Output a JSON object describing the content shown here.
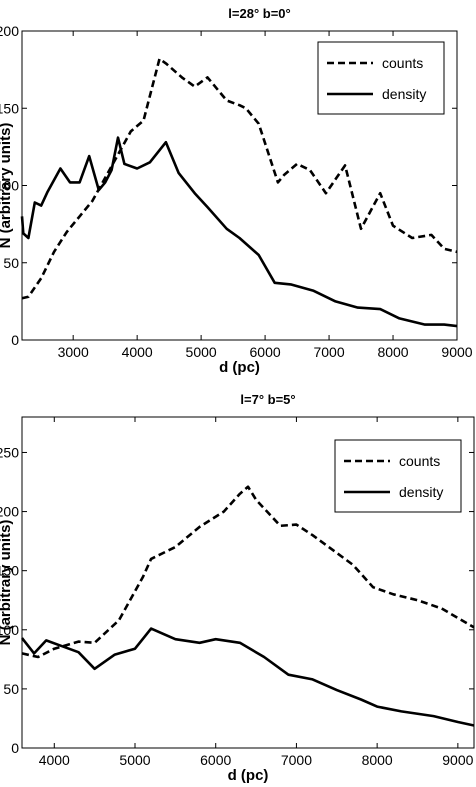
{
  "chart_data": [
    {
      "type": "line",
      "title": "l=28°   b=0°",
      "xlabel": "d (pc)",
      "ylabel": "N (arbitrary units)",
      "xlim": [
        2200,
        9000
      ],
      "ylim": [
        0,
        200
      ],
      "xticks": [
        3000,
        4000,
        5000,
        6000,
        7000,
        8000,
        9000
      ],
      "yticks": [
        0,
        50,
        100,
        150,
        200
      ],
      "grid": false,
      "legend_position": "top-right",
      "series": [
        {
          "name": "counts",
          "style": "dashed",
          "x": [
            2200,
            2300,
            2500,
            2700,
            2900,
            3100,
            3300,
            3500,
            3700,
            3900,
            4100,
            4350,
            4450,
            4700,
            4900,
            5100,
            5200,
            5400,
            5600,
            5700,
            5900,
            6200,
            6300,
            6500,
            6700,
            6950,
            7250,
            7500,
            7800,
            8000,
            8300,
            8600,
            8800,
            9000
          ],
          "y": [
            27,
            28,
            40,
            57,
            70,
            80,
            90,
            105,
            120,
            135,
            142,
            182,
            179,
            170,
            164,
            170,
            165,
            155,
            152,
            150,
            140,
            102,
            107,
            114,
            110,
            95,
            113,
            72,
            95,
            74,
            66,
            68,
            59,
            57
          ]
        },
        {
          "name": "density",
          "style": "solid",
          "x": [
            2200,
            2220,
            2300,
            2400,
            2500,
            2600,
            2800,
            2950,
            3100,
            3250,
            3400,
            3500,
            3600,
            3700,
            3800,
            4000,
            4200,
            4450,
            4650,
            4900,
            5100,
            5400,
            5600,
            5900,
            6150,
            6400,
            6750,
            7100,
            7450,
            7800,
            8100,
            8500,
            8800,
            9000
          ],
          "y": [
            80,
            69,
            66,
            89,
            87,
            96,
            111,
            102,
            102,
            119,
            97,
            102,
            110,
            131,
            114,
            111,
            115,
            128,
            108,
            95,
            86,
            72,
            66,
            55,
            37,
            36,
            32,
            25,
            21,
            20,
            14,
            10,
            10,
            9
          ]
        }
      ]
    },
    {
      "type": "line",
      "title": "l=7°   b=5°",
      "xlabel": "d (pc)",
      "ylabel": "N (arbitrary units)",
      "xlim": [
        3600,
        9200
      ],
      "ylim": [
        0,
        280
      ],
      "xticks": [
        4000,
        5000,
        6000,
        7000,
        8000,
        9000
      ],
      "yticks": [
        0,
        50,
        100,
        150,
        200,
        250
      ],
      "grid": false,
      "legend_position": "top-right",
      "series": [
        {
          "name": "counts",
          "style": "dashed",
          "x": [
            3600,
            3800,
            4000,
            4300,
            4500,
            4800,
            5100,
            5200,
            5500,
            5800,
            6100,
            6300,
            6400,
            6500,
            6800,
            7000,
            7200,
            7400,
            7700,
            7950,
            8200,
            8500,
            8800,
            9000,
            9200
          ],
          "y": [
            80,
            77,
            84,
            90,
            89,
            108,
            145,
            160,
            170,
            187,
            200,
            215,
            221,
            210,
            188,
            189,
            180,
            170,
            155,
            136,
            130,
            125,
            118,
            110,
            102
          ]
        },
        {
          "name": "density",
          "style": "solid",
          "x": [
            3600,
            3750,
            3900,
            4100,
            4300,
            4500,
            4750,
            5000,
            5200,
            5500,
            5800,
            6000,
            6300,
            6600,
            6900,
            7200,
            7500,
            7800,
            8000,
            8300,
            8700,
            9000,
            9200
          ],
          "y": [
            93,
            80,
            91,
            86,
            81,
            67,
            79,
            84,
            101,
            92,
            89,
            92,
            89,
            77,
            62,
            58,
            49,
            41,
            35,
            31,
            27,
            22,
            19
          ]
        }
      ]
    }
  ]
}
